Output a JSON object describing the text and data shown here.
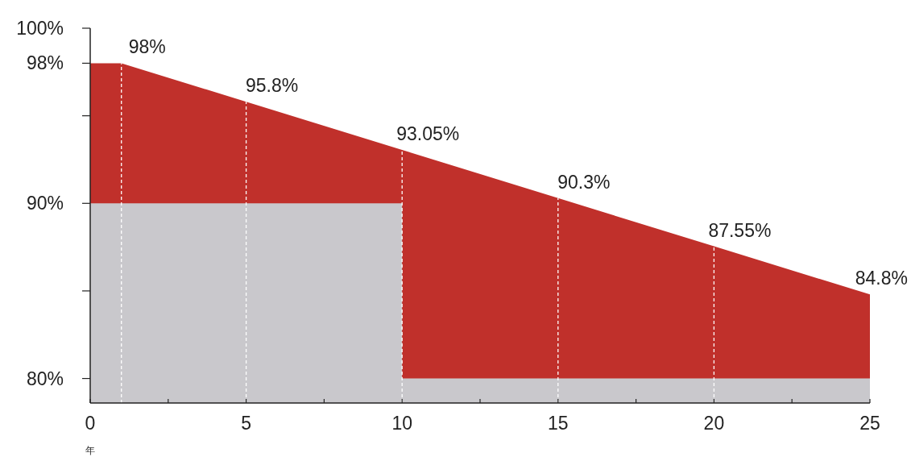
{
  "chart_data": {
    "type": "area",
    "xlabel": "年",
    "series": [
      {
        "color": "#c0302b",
        "x": [
          0,
          1,
          5,
          10,
          15,
          20,
          25
        ],
        "values": [
          98,
          98,
          95.8,
          93.05,
          90.3,
          87.55,
          84.8
        ],
        "value_labels": [
          null,
          "98%",
          "95.8%",
          "93.05%",
          "90.3%",
          "87.55%",
          "84.8%"
        ]
      },
      {
        "color": "#c9c8cc",
        "x": [
          0,
          10,
          10,
          25
        ],
        "values": [
          90,
          90,
          80,
          80
        ]
      }
    ],
    "xlim": [
      0,
      25
    ],
    "xticks": [
      0,
      {
        "value": 2.5,
        "label": null
      },
      5,
      {
        "value": 7.5,
        "label": null
      },
      10,
      {
        "value": 12.5,
        "label": null
      },
      15,
      {
        "value": 17.5,
        "label": null
      },
      20,
      {
        "value": 22.5,
        "label": null
      },
      25
    ],
    "ylim": [
      78.6,
      100
    ],
    "yticks": [
      {
        "value": 80,
        "label": "80%"
      },
      {
        "value": 85,
        "label": null
      },
      {
        "value": 90,
        "label": "90%"
      },
      {
        "value": 95,
        "label": null
      },
      {
        "value": 98,
        "label": "98%"
      },
      {
        "value": 100,
        "label": "100%"
      }
    ],
    "ref_lines": [
      {
        "axis": "x",
        "value": 1,
        "color": "#ffffff",
        "line_style": "dashed"
      },
      {
        "axis": "x",
        "value": 5,
        "color": "#ffffff",
        "line_style": "dashed"
      },
      {
        "axis": "x",
        "value": 10,
        "color": "#ffffff",
        "line_style": "dashed"
      },
      {
        "axis": "x",
        "value": 15,
        "color": "#ffffff",
        "line_style": "dashed"
      },
      {
        "axis": "x",
        "value": 20,
        "color": "#ffffff",
        "line_style": "dashed"
      }
    ]
  }
}
